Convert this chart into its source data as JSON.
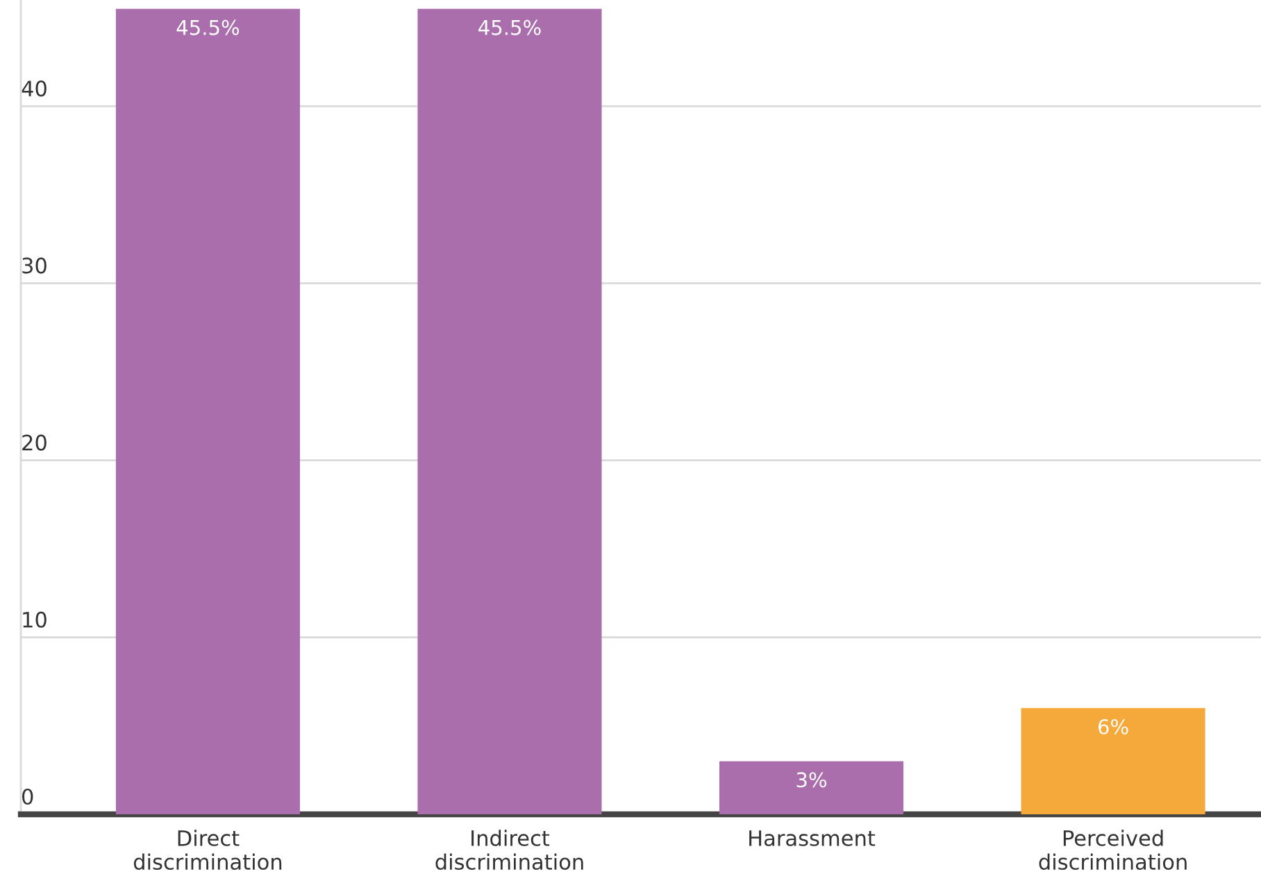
{
  "chart_data": {
    "type": "bar",
    "categories": [
      "Direct\ndiscrimination",
      "Indirect\ndiscrimination",
      "Harassment",
      "Perceived\ndiscrimination"
    ],
    "values": [
      45.5,
      45.5,
      3,
      6
    ],
    "colors": [
      "#a96eab",
      "#a96eab",
      "#a96eab",
      "#f6a93b"
    ],
    "value_labels": [
      "45.5%",
      "45.5%",
      "3%",
      "6%"
    ],
    "ylim": [
      0,
      46
    ],
    "yticks": [
      0,
      10,
      20,
      30,
      40
    ],
    "grid": "y",
    "legend": false
  }
}
